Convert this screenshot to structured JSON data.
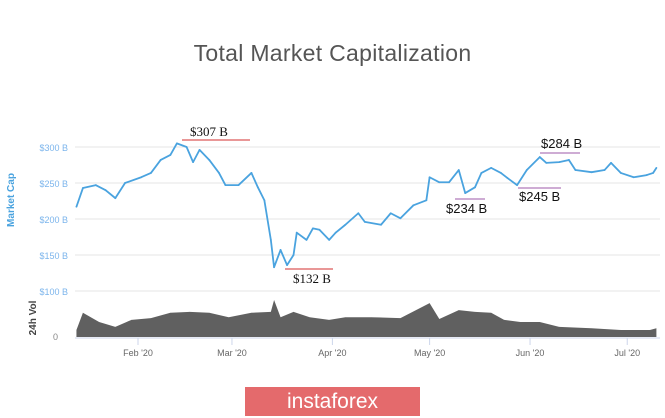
{
  "chart_data": {
    "type": "line",
    "title": "Total Market Capitalization",
    "ylabel": "Market Cap",
    "ylabel_volume": "24h Vol",
    "x_unit": "day of year 2020",
    "ylim": [
      100,
      300
    ],
    "yticks": [
      "$300 B",
      "$250 B",
      "$200 B",
      "$150 B",
      "$100 B"
    ],
    "ytick_values": [
      300,
      250,
      200,
      150,
      100
    ],
    "volume_ytick": "0",
    "xticks": [
      "Feb '20",
      "Mar '20",
      "Apr '20",
      "May '20",
      "Jun '20",
      "Jul '20"
    ],
    "xtick_days": [
      32,
      61,
      92,
      122,
      153,
      183
    ],
    "grid": true,
    "series": [
      {
        "name": "Market Cap",
        "unit": "$B",
        "color": "#4aa3df",
        "days": [
          13,
          15,
          19,
          22,
          25,
          28,
          33,
          36,
          39,
          42,
          44,
          47,
          49,
          51,
          54,
          57,
          59,
          63,
          67,
          69,
          71,
          73,
          74,
          76,
          78,
          80,
          81,
          84,
          86,
          88,
          91,
          93,
          96,
          100,
          102,
          107,
          110,
          113,
          117,
          121,
          122,
          125,
          128,
          131,
          133,
          136,
          138,
          141,
          144,
          146,
          149,
          152,
          156,
          158,
          162,
          165,
          167,
          172,
          176,
          178,
          181,
          185,
          189,
          191,
          192
        ],
        "values": [
          217,
          243,
          247,
          240,
          229,
          250,
          258,
          264,
          282,
          289,
          305,
          300,
          279,
          296,
          282,
          264,
          247,
          247,
          264,
          244,
          226,
          171,
          133,
          157,
          136,
          150,
          181,
          171,
          187,
          185,
          171,
          181,
          192,
          208,
          196,
          192,
          208,
          201,
          219,
          226,
          258,
          251,
          251,
          268,
          236,
          244,
          264,
          271,
          264,
          257,
          247,
          268,
          286,
          278,
          279,
          282,
          268,
          265,
          268,
          278,
          264,
          258,
          261,
          264,
          271
        ]
      },
      {
        "name": "24h Vol",
        "unit": "$B",
        "color": "#606060",
        "days": [
          13,
          15,
          20,
          25,
          30,
          36,
          42,
          48,
          54,
          60,
          67,
          73,
          74,
          76,
          80,
          85,
          91,
          96,
          104,
          113,
          122,
          125,
          131,
          136,
          141,
          145,
          150,
          156,
          162,
          172,
          181,
          190,
          192
        ],
        "values": [
          16,
          55,
          34,
          23,
          39,
          43,
          55,
          57,
          55,
          45,
          55,
          57,
          84,
          45,
          57,
          45,
          39,
          45,
          45,
          43,
          77,
          41,
          61,
          57,
          55,
          39,
          34,
          34,
          23,
          20,
          16,
          16,
          20
        ]
      }
    ],
    "annotations": [
      {
        "text": "$307 B",
        "day": 44,
        "value": 307,
        "color": "#d32f2f"
      },
      {
        "text": "$132 B",
        "day": 76,
        "value": 132,
        "color": "#d32f2f"
      },
      {
        "text": "$234 B",
        "day": 133,
        "value": 234,
        "color": "#9c5aa8"
      },
      {
        "text": "$245 B",
        "day": 149,
        "value": 245,
        "color": "#9c5aa8"
      },
      {
        "text": "$284 B",
        "day": 156,
        "value": 284,
        "color": "#9c5aa8"
      }
    ]
  },
  "brand": {
    "label": "instaforex",
    "color": "#e46a6c"
  }
}
